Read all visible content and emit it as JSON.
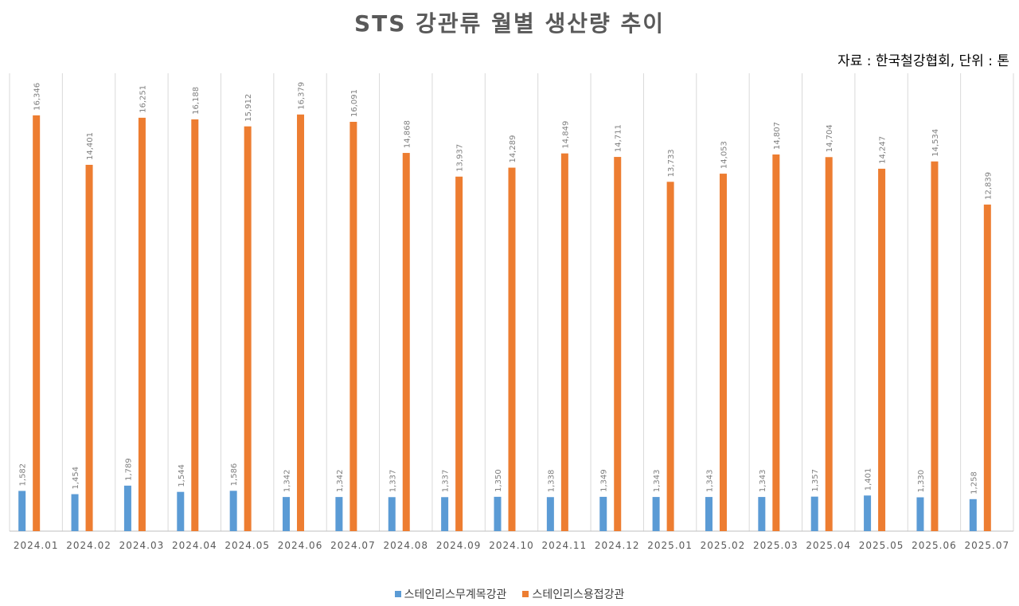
{
  "title": "STS 강관류 월별 생산량 추이",
  "source_note": "자료 : 한국철강협회, 단위 : 톤",
  "colors": {
    "series_1": "#5b9bd5",
    "series_2": "#ed7d31",
    "gridline": "#d9d9d9",
    "axis_line": "#bfbfbf",
    "tick_label": "#595959",
    "data_label": "#7f7f7f"
  },
  "chart_data": {
    "type": "bar",
    "categories": [
      "2024.01",
      "2024.02",
      "2024.03",
      "2024.04",
      "2024.05",
      "2024.06",
      "2024.07",
      "2024.08",
      "2024.09",
      "2024.10",
      "2024.11",
      "2024.12",
      "2025.01",
      "2025.02",
      "2025.03",
      "2025.04",
      "2025.05",
      "2025.06",
      "2025.07"
    ],
    "series": [
      {
        "name": "스테인리스무계목강관",
        "values": [
          1582,
          1454,
          1789,
          1544,
          1586,
          1342,
          1342,
          1337,
          1337,
          1350,
          1338,
          1349,
          1343,
          1343,
          1343,
          1357,
          1401,
          1330,
          1258
        ],
        "labels": [
          "1,582",
          "1,454",
          "1,789",
          "1,544",
          "1,586",
          "1,342",
          "1,342",
          "1,337",
          "1,337",
          "1,350",
          "1,338",
          "1,349",
          "1,343",
          "1,343",
          "1,343",
          "1,357",
          "1,401",
          "1,330",
          "1,258"
        ]
      },
      {
        "name": "스테인리스용접강관",
        "values": [
          16346,
          14401,
          16251,
          16188,
          15912,
          16379,
          16091,
          14868,
          13937,
          14289,
          14849,
          14711,
          13733,
          14053,
          14807,
          14704,
          14247,
          14534,
          12839
        ],
        "labels": [
          "16,346",
          "14,401",
          "16,251",
          "16,188",
          "15,912",
          "16,379",
          "16,091",
          "14,868",
          "13,937",
          "14,289",
          "14,849",
          "14,711",
          "13,733",
          "14,053",
          "14,807",
          "14,704",
          "14,247",
          "14,534",
          "12,839"
        ]
      }
    ],
    "ylim": [
      0,
      18000
    ],
    "grid": "vertical category separators",
    "legend_position": "bottom",
    "data_labels": "rotated above bars"
  }
}
